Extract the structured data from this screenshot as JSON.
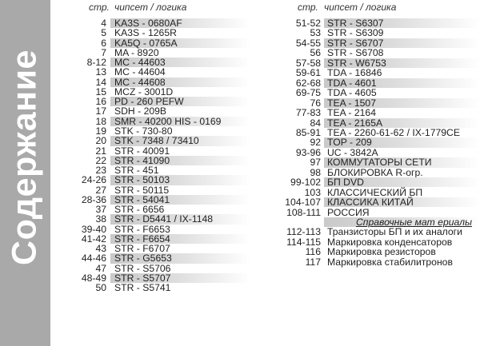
{
  "sidebar": {
    "title": "Содержание",
    "color": "#a9a9a9"
  },
  "header": {
    "page_label": "стр.",
    "chip_label": "чипсет  / логика"
  },
  "left_column": [
    {
      "page": "4",
      "name": "KA3S - 0680AF",
      "highlighted": true
    },
    {
      "page": "5",
      "name": "KA3S - 1265R",
      "highlighted": false
    },
    {
      "page": "6",
      "name": "KA5Q - 0765A",
      "highlighted": true
    },
    {
      "page": "7",
      "name": "MA - 8920",
      "highlighted": false
    },
    {
      "page": "8-12",
      "name": "MC - 44603",
      "highlighted": true
    },
    {
      "page": "13",
      "name": "MC - 44604",
      "highlighted": false
    },
    {
      "page": "14",
      "name": "MC - 44608",
      "highlighted": true
    },
    {
      "page": "15",
      "name": "MCZ - 3001D",
      "highlighted": false
    },
    {
      "page": "16",
      "name": "PD - 260 PEFW",
      "highlighted": true
    },
    {
      "page": "17",
      "name": "SDH - 209B",
      "highlighted": false
    },
    {
      "page": "18",
      "name": "SMR - 40200 HIS - 0169",
      "highlighted": true
    },
    {
      "page": "19",
      "name": "STK - 730-80",
      "highlighted": false
    },
    {
      "page": "20",
      "name": "STK - 7348 / 73410",
      "highlighted": true
    },
    {
      "page": "21",
      "name": "STR - 40091",
      "highlighted": false
    },
    {
      "page": "22",
      "name": "STR - 41090",
      "highlighted": true
    },
    {
      "page": "23",
      "name": "STR - 451",
      "highlighted": false
    },
    {
      "page": "24-26",
      "name": "STR - 50103",
      "highlighted": true
    },
    {
      "page": "27",
      "name": "STR - 50115",
      "highlighted": false
    },
    {
      "page": "28-36",
      "name": "STR - 54041",
      "highlighted": true
    },
    {
      "page": "37",
      "name": "STR - 6656",
      "highlighted": false
    },
    {
      "page": "38",
      "name": "STR - D5441 / IX-1148",
      "highlighted": true
    },
    {
      "page": "39-40",
      "name": "STR - F6653",
      "highlighted": false
    },
    {
      "page": "41-42",
      "name": "STR - F6654",
      "highlighted": true
    },
    {
      "page": "43",
      "name": "STR - F6707",
      "highlighted": false
    },
    {
      "page": "44-46",
      "name": "STR - G5653",
      "highlighted": true
    },
    {
      "page": "47",
      "name": "STR - S5706",
      "highlighted": false
    },
    {
      "page": "48-49",
      "name": "STR - S5707",
      "highlighted": true
    },
    {
      "page": "50",
      "name": "STR - S5741",
      "highlighted": false
    }
  ],
  "right_column": [
    {
      "page": "51-52",
      "name": "STR - S6307",
      "highlighted": true
    },
    {
      "page": "53",
      "name": "STR - S6309",
      "highlighted": false
    },
    {
      "page": "54-55",
      "name": "STR - S6707",
      "highlighted": true
    },
    {
      "page": "56",
      "name": "STR - S6708",
      "highlighted": false
    },
    {
      "page": "57-58",
      "name": "STR - W6753",
      "highlighted": true
    },
    {
      "page": "59-61",
      "name": "TDA - 16846",
      "highlighted": false
    },
    {
      "page": "62-68",
      "name": "TDA - 4601",
      "highlighted": true
    },
    {
      "page": "69-75",
      "name": "TDA - 4605",
      "highlighted": false
    },
    {
      "page": "76",
      "name": "TEA - 1507",
      "highlighted": true
    },
    {
      "page": "77-83",
      "name": "TEA - 2164",
      "highlighted": false
    },
    {
      "page": "84",
      "name": "TEA - 2165A",
      "highlighted": true
    },
    {
      "page": "85-91",
      "name": "TEA - 2260-61-62 / IX-1779CE",
      "highlighted": false
    },
    {
      "page": "92",
      "name": "TOP - 209",
      "highlighted": true
    },
    {
      "page": "93-96",
      "name": "UC - 3842A",
      "highlighted": false
    },
    {
      "page": "97",
      "name": "КОММУТАТОРЫ СЕТИ",
      "highlighted": true
    },
    {
      "page": "98",
      "name": "БЛОКИРОВКА R-огр.",
      "highlighted": false
    },
    {
      "page": "99-102",
      "name": "БП DVD",
      "highlighted": true
    },
    {
      "page": "103",
      "name": "КЛАССИЧЕСКИЙ БП",
      "highlighted": false
    },
    {
      "page": "104-107",
      "name": "КЛАССИКА КИТАЙ",
      "highlighted": true
    },
    {
      "page": "108-111",
      "name": "РОССИЯ",
      "highlighted": false
    },
    {
      "page": "",
      "name": "Справочные мат ериалы",
      "highlighted": true,
      "section": true
    },
    {
      "page": "112-113",
      "name": "Транзисторы БП и их аналоги",
      "highlighted": false
    },
    {
      "page": "114-115",
      "name": "Маркировка конденсаторов",
      "highlighted": false
    },
    {
      "page": "116",
      "name": "Маркировка резисторов",
      "highlighted": false
    },
    {
      "page": "117",
      "name": "Маркировка стабилитронов",
      "highlighted": false
    }
  ]
}
